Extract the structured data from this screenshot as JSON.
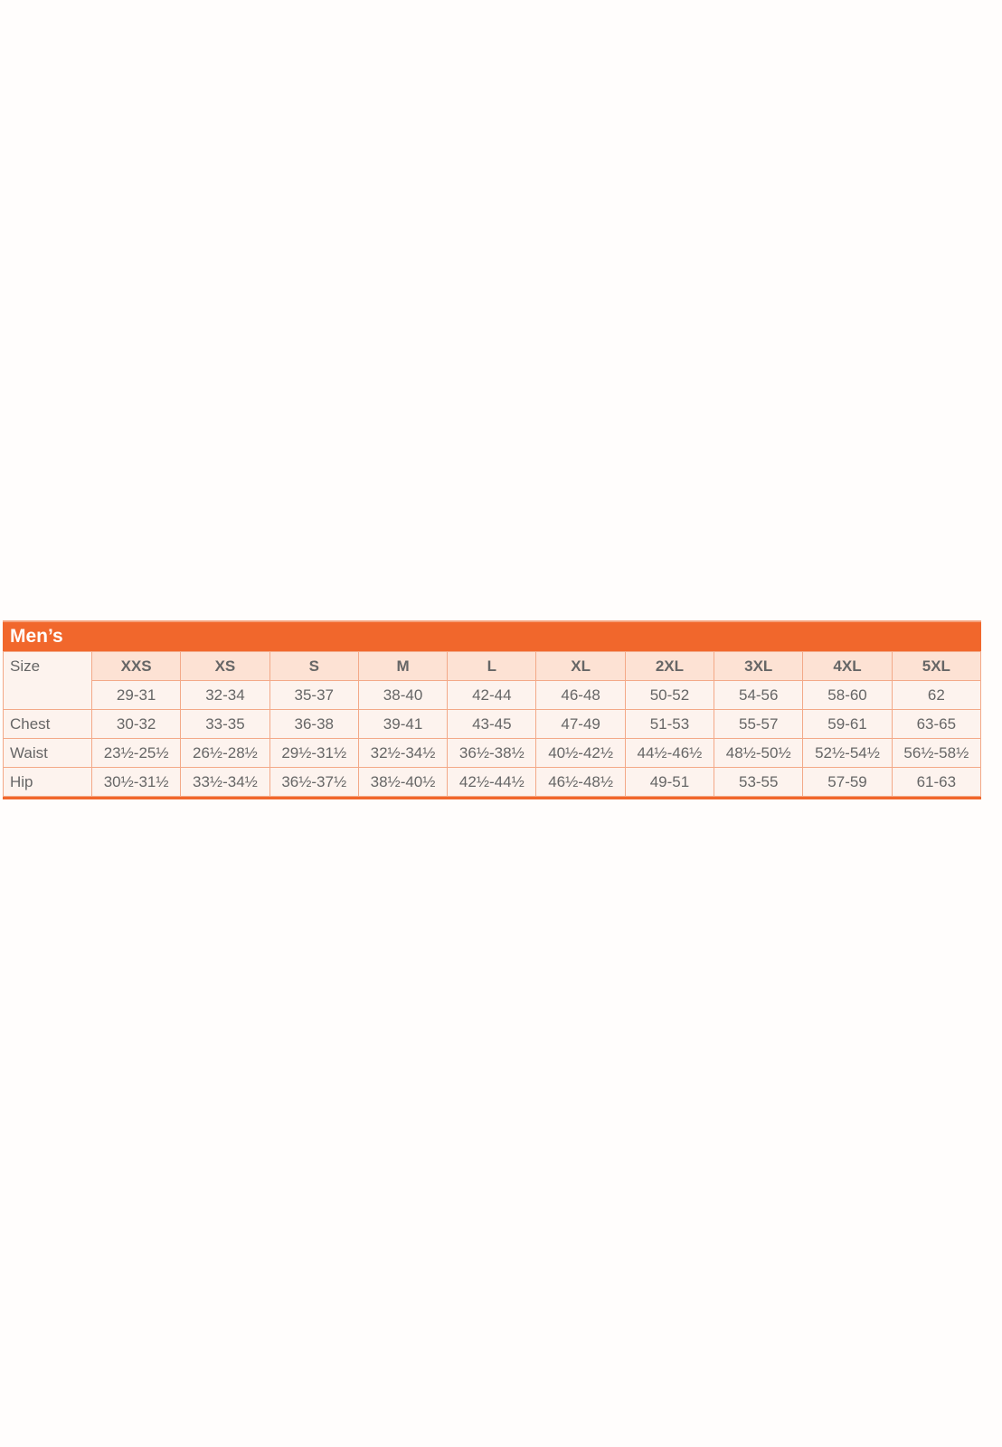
{
  "title": "Men’s",
  "accent_color": "#f1672c",
  "row_labels": {
    "size": "Size",
    "chest": "Chest",
    "waist": "Waist",
    "hip": "Hip"
  },
  "sizes": [
    "XXS",
    "XS",
    "S",
    "M",
    "L",
    "XL",
    "2XL",
    "3XL",
    "4XL",
    "5XL"
  ],
  "size_numbers": [
    "29-31",
    "32-34",
    "35-37",
    "38-40",
    "42-44",
    "46-48",
    "50-52",
    "54-56",
    "58-60",
    "62"
  ],
  "chest": [
    "30-32",
    "33-35",
    "36-38",
    "39-41",
    "43-45",
    "47-49",
    "51-53",
    "55-57",
    "59-61",
    "63-65"
  ],
  "waist": [
    "23½-25½",
    "26½-28½",
    "29½-31½",
    "32½-34½",
    "36½-38½",
    "40½-42½",
    "44½-46½",
    "48½-50½",
    "52½-54½",
    "56½-58½"
  ],
  "hip": [
    "30½-31½",
    "33½-34½",
    "36½-37½",
    "38½-40½",
    "42½-44½",
    "46½-48½",
    "49-51",
    "53-55",
    "57-59",
    "61-63"
  ]
}
